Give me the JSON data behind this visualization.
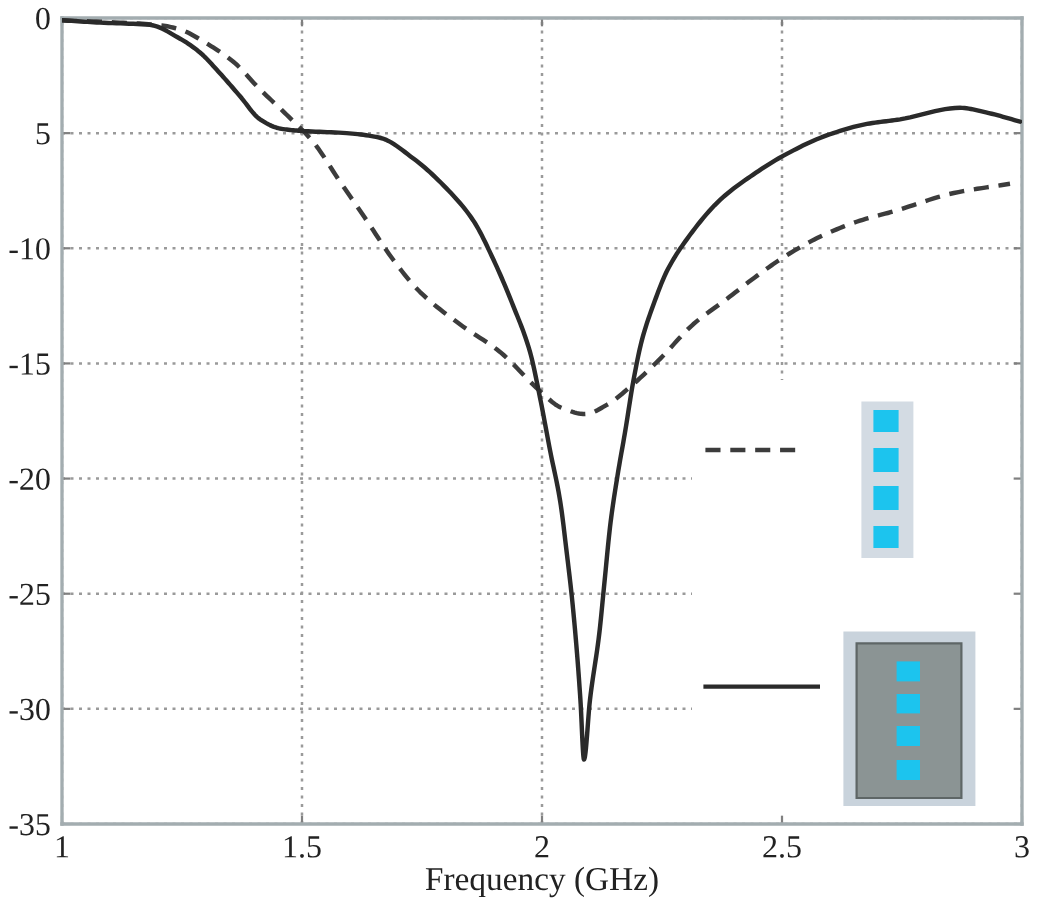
{
  "chart_data": {
    "type": "line",
    "xlabel": "Frequency (GHz)",
    "xlim": [
      1,
      3
    ],
    "xticks": [
      1,
      1.5,
      2,
      2.5,
      3
    ],
    "ylim": [
      -35,
      0
    ],
    "yticks": [
      0,
      {
        "value": -5,
        "label": "5"
      },
      -10,
      -15,
      -20,
      -25,
      -30,
      -35
    ],
    "grid": true,
    "series": [
      {
        "color": "#3c3c3c",
        "line_style": "dashed",
        "x": [
          1.0,
          1.121,
          1.2,
          1.246,
          1.301,
          1.357,
          1.4125,
          1.468,
          1.524,
          1.579,
          1.635,
          1.69,
          1.746,
          1.829,
          1.9125,
          1.996,
          2.038,
          2.09,
          2.135,
          2.19,
          2.246,
          2.315,
          2.385,
          2.454,
          2.51,
          2.579,
          2.6625,
          2.732,
          2.858,
          2.975
        ],
        "values": [
          -0.1,
          -0.2,
          -0.3,
          -0.5,
          -1.1,
          -1.9,
          -3.1,
          -4.2,
          -5.4,
          -7.1,
          -8.8,
          -10.5,
          -11.9,
          -13.3,
          -14.5,
          -16.2,
          -16.9,
          -17.2,
          -16.8,
          -15.9,
          -14.8,
          -13.3,
          -12.2,
          -11.1,
          -10.3,
          -9.5,
          -8.8,
          -8.4,
          -7.6,
          -7.2
        ]
      },
      {
        "color": "#2a2a2a",
        "line_style": "solid",
        "x": [
          1.0,
          1.079,
          1.183,
          1.246,
          1.2875,
          1.329,
          1.371,
          1.4125,
          1.454,
          1.496,
          1.593,
          1.6625,
          1.732,
          1.801,
          1.857,
          1.899,
          1.94,
          1.975,
          1.996,
          2.017,
          2.038,
          2.052,
          2.063,
          2.073,
          2.08,
          2.0875,
          2.1,
          2.1195,
          2.1292,
          2.1429,
          2.1571,
          2.1737,
          2.19,
          2.208,
          2.233,
          2.26,
          2.302,
          2.371,
          2.44,
          2.51,
          2.593,
          2.677,
          2.746,
          2.871,
          2.925,
          2.996
        ],
        "values": [
          -0.1,
          -0.2,
          -0.3,
          -0.9,
          -1.5,
          -2.4,
          -3.4,
          -4.4,
          -4.8,
          -4.9,
          -5.0,
          -5.2,
          -6.1,
          -7.4,
          -8.8,
          -10.5,
          -12.5,
          -14.5,
          -16.5,
          -18.8,
          -21.0,
          -23.3,
          -25.3,
          -27.6,
          -29.6,
          -32.2,
          -29.6,
          -26.7,
          -24.7,
          -21.9,
          -19.9,
          -17.9,
          -15.8,
          -14.0,
          -12.4,
          -11.0,
          -9.6,
          -7.9,
          -6.8,
          -5.9,
          -5.1,
          -4.6,
          -4.4,
          -3.9,
          -4.1,
          -4.5
        ]
      }
    ]
  }
}
